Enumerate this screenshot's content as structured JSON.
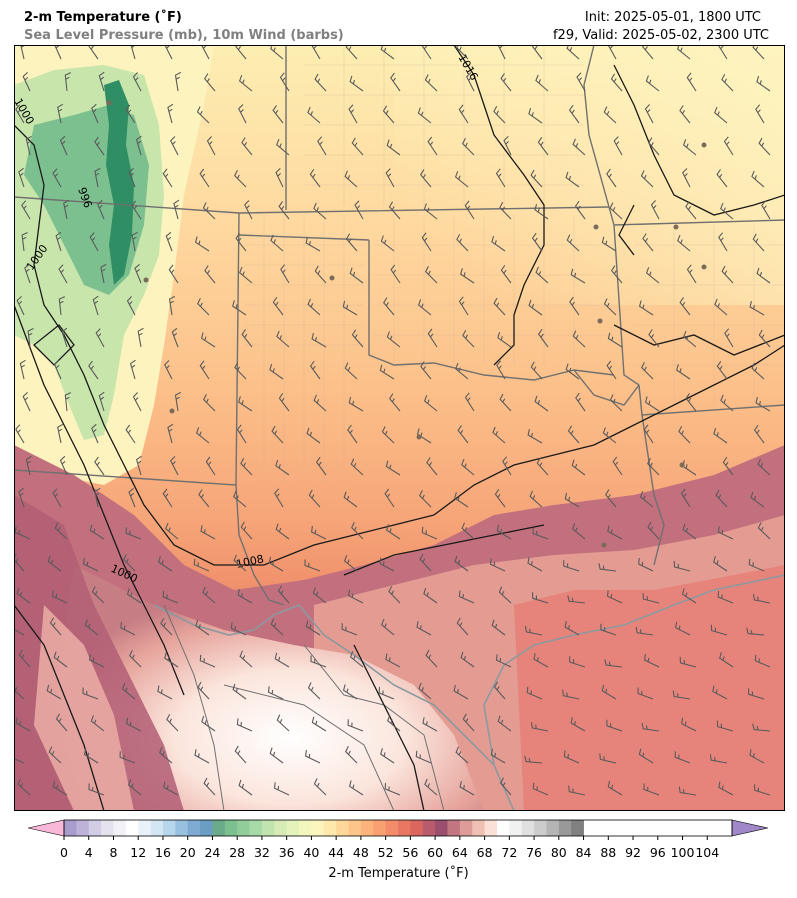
{
  "header": {
    "title": "2-m Temperature (˚F)",
    "subtitle": "Sea Level Pressure (mb), 10m Wind (barbs)",
    "init": "Init: 2025-05-01, 1800 UTC",
    "valid": "f29, Valid: 2025-05-02, 2300 UTC"
  },
  "isobar_labels": [
    "1016",
    "1000",
    "996",
    "1000",
    "1008",
    "1000"
  ],
  "colorbar": {
    "label": "2-m Temperature (˚F)",
    "ticks": [
      "0",
      "4",
      "8",
      "12",
      "16",
      "20",
      "24",
      "28",
      "32",
      "36",
      "40",
      "44",
      "48",
      "52",
      "56",
      "60",
      "64",
      "68",
      "72",
      "76",
      "80",
      "84",
      "88",
      "92",
      "96",
      "100",
      "104"
    ],
    "min": 0,
    "max": 108,
    "step": 2,
    "colors": [
      "#a88dca",
      "#8d72b6",
      "#a99ccd",
      "#bdb3d8",
      "#d2cde4",
      "#e4e2ef",
      "#f1f1f7",
      "#ffffff",
      "#e9f2f9",
      "#d3e6f3",
      "#b7d6eb",
      "#98c1df",
      "#7fabd2",
      "#6b9ec3",
      "#6aab8a",
      "#7cc08f",
      "#90cd9a",
      "#a8d9a8",
      "#c0e3b0",
      "#d5ecb6",
      "#e5f2b9",
      "#f3f7bd",
      "#fdf5be",
      "#fee8ac",
      "#fed89a",
      "#fdc589",
      "#fcb37c",
      "#f9a072",
      "#f28c6a",
      "#e87764",
      "#d9675e",
      "#b85c6d",
      "#9a4f6f",
      "#c27780",
      "#dd9c97",
      "#f0c0b5",
      "#fae0d6",
      "#ffffff",
      "#f1f1f1",
      "#e0e0e0",
      "#cccccc",
      "#b5b5b5",
      "#999999",
      "#808080"
    ],
    "under_color": "#f9b8d8",
    "over_color": "#a088c8"
  }
}
